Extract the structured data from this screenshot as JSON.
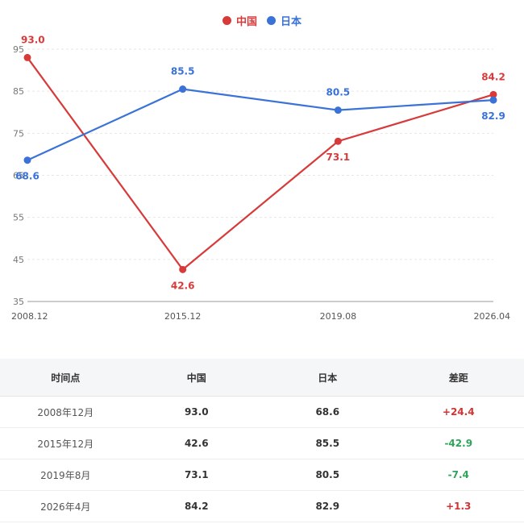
{
  "legend": [
    {
      "name": "中国",
      "color": "#d83a3a"
    },
    {
      "name": "日本",
      "color": "#3a72d8"
    }
  ],
  "chart_data": {
    "type": "line",
    "categories": [
      "2008.12",
      "2015.12",
      "2019.08",
      "2026.04"
    ],
    "series": [
      {
        "name": "中国",
        "color": "#d83a3a",
        "values": [
          93.0,
          42.6,
          73.1,
          84.2
        ],
        "labels": [
          "93.0",
          "42.6",
          "73.1",
          "84.2"
        ]
      },
      {
        "name": "日本",
        "color": "#3a72d8",
        "values": [
          68.6,
          85.5,
          80.5,
          82.9
        ],
        "labels": [
          "68.6",
          "85.5",
          "80.5",
          "82.9"
        ]
      }
    ],
    "ylim": [
      35,
      95
    ],
    "yticks": [
      "35",
      "45",
      "55",
      "65",
      "75",
      "85",
      "95"
    ],
    "grid": true,
    "legend_position": "top-center"
  },
  "table": {
    "headers": [
      "时间点",
      "中国",
      "日本",
      "差距"
    ],
    "rows": [
      {
        "time": "2008年12月",
        "china": "93.0",
        "japan": "68.6",
        "diff": "+24.4"
      },
      {
        "time": "2015年12月",
        "china": "42.6",
        "japan": "85.5",
        "diff": "-42.9"
      },
      {
        "time": "2019年8月",
        "china": "73.1",
        "japan": "80.5",
        "diff": "-7.4"
      },
      {
        "time": "2026年4月",
        "china": "84.2",
        "japan": "82.9",
        "diff": "+1.3"
      }
    ]
  }
}
